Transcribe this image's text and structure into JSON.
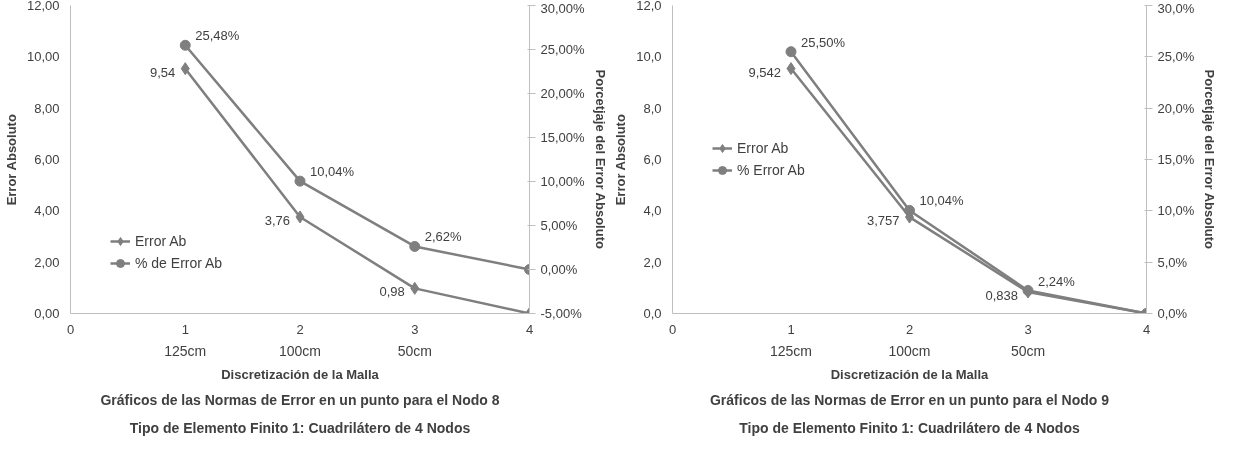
{
  "chart_data": [
    {
      "type": "line",
      "title": "Gráficos de las Normas de Error en un punto para el Nodo 8",
      "subtitle": "Tipo de Elemento Finito 1: Cuadrilátero de 4 Nodos",
      "xlabel": "Discretización de la Malla",
      "ylabel": "Error Absoluto",
      "y2label": "Porcetjaje del Error Absoluto",
      "x": [
        1,
        2,
        3,
        4
      ],
      "xlim": [
        0,
        4
      ],
      "xticks": [
        0,
        1,
        2,
        3,
        4
      ],
      "annotations": [
        "125cm",
        "100cm",
        "50cm"
      ],
      "ylim": [
        0,
        12
      ],
      "yticks": [
        {
          "value": 0,
          "label": "0,00"
        },
        {
          "value": 2,
          "label": "2,00"
        },
        {
          "value": 4,
          "label": "4,00"
        },
        {
          "value": 6,
          "label": "6,00"
        },
        {
          "value": 8,
          "label": "8,00"
        },
        {
          "value": 10,
          "label": "10,00"
        },
        {
          "value": 12,
          "label": "12,00"
        }
      ],
      "y2lim": [
        -5,
        30
      ],
      "y2ticks": [
        {
          "value": -5,
          "label": "-5,00%"
        },
        {
          "value": 0,
          "label": "0,00%"
        },
        {
          "value": 5,
          "label": "5,00%"
        },
        {
          "value": 10,
          "label": "10,00%"
        },
        {
          "value": 15,
          "label": "15,00%"
        },
        {
          "value": 20,
          "label": "20,00%"
        },
        {
          "value": 25,
          "label": "25,00%"
        },
        {
          "value": 30,
          "label": "30,00%"
        }
      ],
      "grid": false,
      "legend": "bottom left",
      "series": [
        {
          "name": "Error Ab",
          "color": "#7f7f7f",
          "marker": "diamond",
          "values": [
            9.54,
            3.76,
            0.98,
            0
          ],
          "value_labels": [
            "9,54",
            "3,76",
            "0,98",
            null
          ]
        },
        {
          "name": "% de Error Ab",
          "color": "#7f7f7f",
          "marker": "circle",
          "axis": "y2",
          "values": [
            25.48,
            10.04,
            2.62,
            0
          ],
          "value_labels": [
            "25,48%",
            "10,04%",
            "2,62%",
            null
          ]
        }
      ]
    },
    {
      "type": "line",
      "title": "Gráficos de las Normas de Error en un punto para el Nodo 9",
      "subtitle": "Tipo de Elemento Finito 1: Cuadrilátero de 4 Nodos",
      "xlabel": "Discretización de la Malla",
      "ylabel": "Error Absoluto",
      "y2label": "Porcetjaje del Error Absoluto",
      "x": [
        1,
        2,
        3,
        4
      ],
      "xlim": [
        0,
        4
      ],
      "xticks": [
        0,
        1,
        2,
        3,
        4
      ],
      "annotations": [
        "125cm",
        "100cm",
        "50cm"
      ],
      "ylim": [
        0,
        12
      ],
      "yticks": [
        {
          "value": 0,
          "label": "0,0"
        },
        {
          "value": 2,
          "label": "2,0"
        },
        {
          "value": 4,
          "label": "4,0"
        },
        {
          "value": 6,
          "label": "6,0"
        },
        {
          "value": 8,
          "label": "8,0"
        },
        {
          "value": 10,
          "label": "10,0"
        },
        {
          "value": 12,
          "label": "12,0"
        }
      ],
      "y2lim": [
        0,
        30
      ],
      "y2ticks": [
        {
          "value": 0,
          "label": "0,0%"
        },
        {
          "value": 5,
          "label": "5,0%"
        },
        {
          "value": 10,
          "label": "10,0%"
        },
        {
          "value": 15,
          "label": "15,0%"
        },
        {
          "value": 20,
          "label": "20,0%"
        },
        {
          "value": 25,
          "label": "25,0%"
        },
        {
          "value": 30,
          "label": "30,0%"
        }
      ],
      "grid": false,
      "legend": "left",
      "series": [
        {
          "name": "Error Ab",
          "color": "#7f7f7f",
          "marker": "diamond",
          "values": [
            9.542,
            3.757,
            0.838,
            0
          ],
          "value_labels": [
            "9,542",
            "3,757",
            "0,838",
            null
          ]
        },
        {
          "name": "% Error Ab",
          "color": "#7f7f7f",
          "marker": "circle",
          "axis": "y2",
          "values": [
            25.5,
            10.04,
            2.24,
            0
          ],
          "value_labels": [
            "25,50%",
            "10,04%",
            "2,24%",
            null
          ]
        }
      ]
    }
  ]
}
